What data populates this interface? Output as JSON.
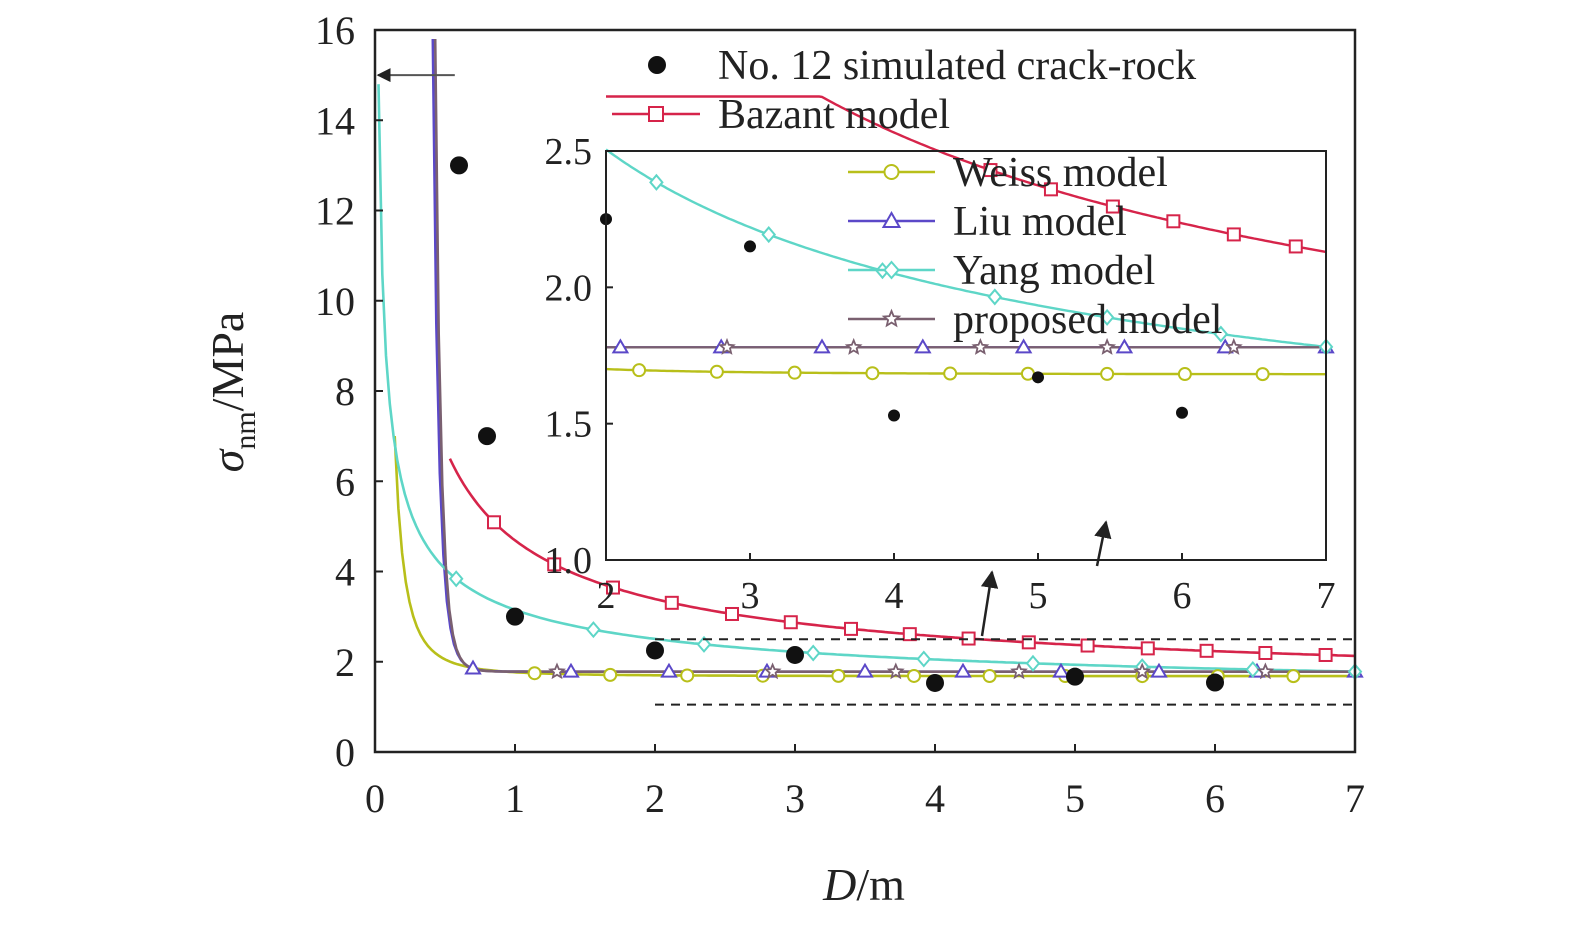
{
  "chart_data": {
    "type": "line",
    "xlabel": "D/m",
    "ylabel": "σnm/MPa",
    "ylabel_symbol": "σ",
    "ylabel_subscript": "nm",
    "ylabel_unit": "/MPa",
    "xlabel_symbol": "D",
    "xlabel_unit": "/m",
    "xlim": [
      0,
      7
    ],
    "ylim": [
      0,
      16
    ],
    "xticks": [
      "0",
      "1",
      "2",
      "3",
      "4",
      "5",
      "6",
      "7"
    ],
    "yticks": [
      "0",
      "2",
      "4",
      "6",
      "8",
      "10",
      "12",
      "14",
      "16"
    ],
    "grid": false,
    "legend_position": "top-right",
    "series": [
      {
        "name": "No. 12 simulated crack-rock",
        "kind": "scatter",
        "color": "#111111",
        "marker": "filled-circle",
        "points": [
          [
            0.6,
            13.0
          ],
          [
            0.8,
            7.0
          ],
          [
            1.0,
            3.0
          ],
          [
            2.0,
            2.25
          ],
          [
            3.0,
            2.15
          ],
          [
            4.0,
            1.53
          ],
          [
            5.0,
            1.67
          ],
          [
            6.0,
            1.54
          ]
        ]
      },
      {
        "name": "Bazant model",
        "kind": "line",
        "color": "#d6244a",
        "marker": "square",
        "formula": {
          "a": 1.15,
          "b": 3.54,
          "c": 0.66,
          "y_start": 6.5,
          "x_max": 7.0
        },
        "marker_x": [
          0.85,
          1.28,
          1.7,
          2.12,
          2.55,
          2.97,
          3.4,
          3.82,
          4.24,
          4.67,
          5.09,
          5.52,
          5.94,
          6.36,
          6.79
        ]
      },
      {
        "name": "Weiss model",
        "kind": "line",
        "color": "#b8bf1a",
        "marker": "circle",
        "formula": {
          "a": 1.68,
          "b": 0.087,
          "c": 2.1,
          "y_start": 7.0,
          "x_max": 7.0
        },
        "marker_x": [
          1.14,
          1.68,
          2.23,
          2.77,
          3.31,
          3.85,
          4.39,
          4.93,
          5.48,
          6.02,
          6.56
        ]
      },
      {
        "name": "Liu model",
        "kind": "line",
        "color": "#5b48c8",
        "marker": "triangle",
        "formula": {
          "a": 1.78,
          "b": 0.002,
          "c": 10.0,
          "y_start": 15.8,
          "x_max": 7.0
        },
        "marker_x": [
          0.7,
          1.4,
          2.1,
          2.8,
          3.5,
          4.2,
          4.9,
          5.6,
          6.3,
          7.0
        ]
      },
      {
        "name": "Yang model",
        "kind": "line",
        "color": "#5ed6c7",
        "marker": "diamond",
        "formula": {
          "a": 0.95,
          "b": 2.2,
          "c": 0.5,
          "y_start": 14.8,
          "x_max": 7.0
        },
        "marker_x": [
          0.58,
          1.56,
          2.35,
          3.13,
          3.92,
          4.7,
          5.48,
          6.27,
          7.0
        ]
      },
      {
        "name": "proposed model",
        "kind": "line",
        "color": "#7a6070",
        "marker": "star",
        "formula": {
          "a": 1.78,
          "b": 0.0013,
          "c": 11.0,
          "y_start": 15.8,
          "x_max": 7.0
        },
        "marker_x": [
          1.3,
          2.84,
          3.72,
          4.6,
          5.48,
          6.36
        ]
      }
    ],
    "arrow": {
      "from": [
        0.57,
        15.0
      ],
      "to": [
        0.0,
        15.0
      ]
    },
    "zoom_box": {
      "xlim": [
        2,
        7
      ],
      "ylim": [
        1.05,
        2.5
      ]
    },
    "inset": {
      "xlim": [
        2,
        7
      ],
      "ylim": [
        1.0,
        2.5
      ],
      "xticks": [
        "2",
        "3",
        "4",
        "5",
        "6",
        "7"
      ],
      "yticks": [
        "1.0",
        "1.5",
        "2.0",
        "2.5"
      ],
      "scatter_points": [
        [
          2.0,
          2.25
        ],
        [
          3.0,
          2.15
        ],
        [
          4.0,
          1.53
        ],
        [
          5.0,
          1.67
        ],
        [
          6.0,
          1.54
        ]
      ]
    }
  }
}
